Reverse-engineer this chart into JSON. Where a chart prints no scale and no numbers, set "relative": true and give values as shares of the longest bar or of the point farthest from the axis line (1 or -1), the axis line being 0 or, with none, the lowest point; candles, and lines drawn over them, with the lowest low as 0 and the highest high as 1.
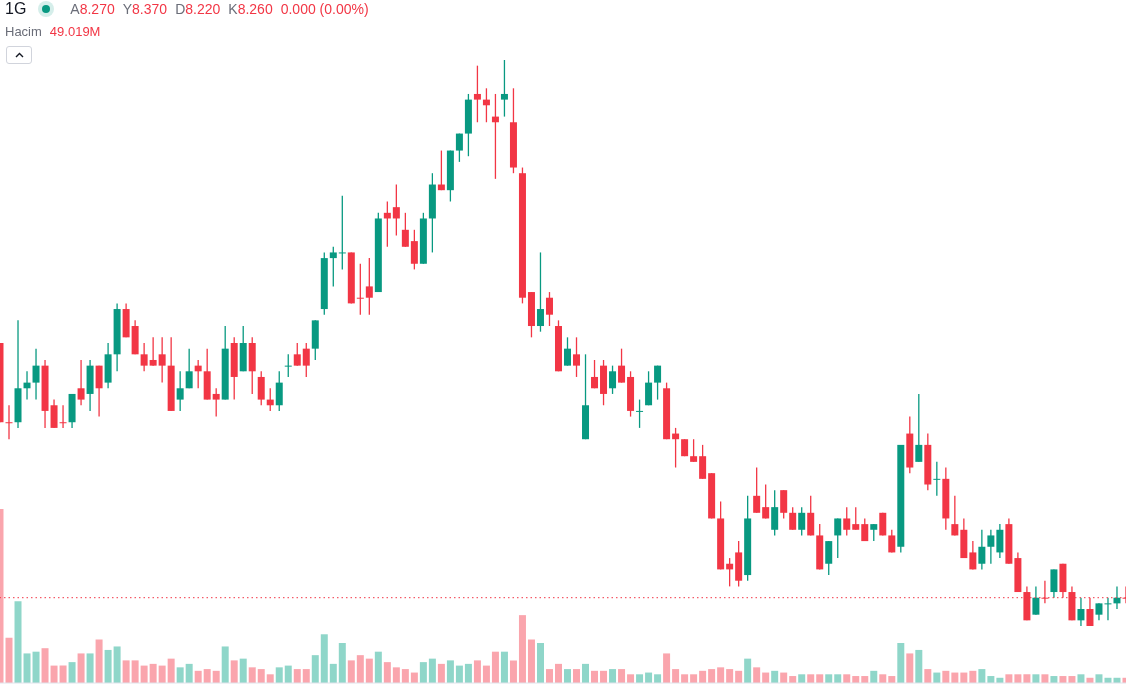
{
  "chart_data": [
    {
      "type": "candlestick",
      "title": "1G",
      "relative": true,
      "annotations": [
        "A8.270",
        "Y8.370",
        "D8.220",
        "K8.260",
        "0.000 (0.00%)"
      ],
      "categories": [
        null,
        null,
        null,
        null,
        null,
        null,
        null,
        null,
        null,
        null,
        null,
        null,
        null,
        null,
        null,
        null,
        null,
        null,
        null,
        null,
        null,
        null,
        null,
        null,
        null,
        null,
        null,
        null,
        null,
        null,
        null,
        null,
        null,
        null,
        null,
        null,
        null,
        null,
        null,
        null,
        null,
        null,
        null,
        null,
        null,
        null,
        null,
        null,
        null,
        null,
        null,
        null,
        null,
        null,
        null,
        null,
        null,
        null,
        null,
        null,
        null,
        null,
        null,
        null,
        null,
        null,
        null,
        null,
        null,
        null,
        null,
        null,
        null,
        null,
        null,
        null,
        null,
        null,
        null,
        null,
        null,
        null,
        null,
        null,
        null,
        null,
        null,
        null,
        null,
        null,
        null,
        null,
        null,
        null,
        null,
        null,
        null,
        null,
        null,
        null,
        null,
        null,
        null,
        null,
        null,
        null,
        null,
        null,
        null,
        null,
        null,
        null,
        null,
        null,
        null,
        null,
        null,
        null,
        null,
        null,
        null,
        null,
        null,
        null,
        null,
        null
      ],
      "ohlc": [
        [
          0.5,
          0.5,
          0.36,
          0.36
        ],
        [
          0.36,
          0.39,
          0.33,
          0.36
        ],
        [
          0.36,
          0.54,
          0.35,
          0.42
        ],
        [
          0.42,
          0.45,
          0.4,
          0.43
        ],
        [
          0.43,
          0.49,
          0.4,
          0.46
        ],
        [
          0.46,
          0.47,
          0.35,
          0.38
        ],
        [
          0.39,
          0.4,
          0.35,
          0.35
        ],
        [
          0.36,
          0.39,
          0.35,
          0.36
        ],
        [
          0.36,
          0.41,
          0.35,
          0.41
        ],
        [
          0.42,
          0.47,
          0.39,
          0.4
        ],
        [
          0.41,
          0.47,
          0.38,
          0.46
        ],
        [
          0.46,
          0.46,
          0.37,
          0.42
        ],
        [
          0.43,
          0.5,
          0.42,
          0.48
        ],
        [
          0.48,
          0.57,
          0.45,
          0.56
        ],
        [
          0.56,
          0.57,
          0.51,
          0.51
        ],
        [
          0.53,
          0.54,
          0.48,
          0.48
        ],
        [
          0.48,
          0.5,
          0.45,
          0.46
        ],
        [
          0.47,
          0.51,
          0.46,
          0.46
        ],
        [
          0.48,
          0.51,
          0.43,
          0.46
        ],
        [
          0.46,
          0.51,
          0.38,
          0.38
        ],
        [
          0.4,
          0.45,
          0.38,
          0.42
        ],
        [
          0.42,
          0.49,
          0.42,
          0.45
        ],
        [
          0.46,
          0.47,
          0.42,
          0.45
        ],
        [
          0.45,
          0.49,
          0.4,
          0.4
        ],
        [
          0.41,
          0.42,
          0.37,
          0.4
        ],
        [
          0.4,
          0.53,
          0.4,
          0.49
        ],
        [
          0.5,
          0.51,
          0.4,
          0.44
        ],
        [
          0.45,
          0.53,
          0.45,
          0.5
        ],
        [
          0.5,
          0.51,
          0.41,
          0.45
        ],
        [
          0.44,
          0.45,
          0.39,
          0.4
        ],
        [
          0.4,
          0.42,
          0.38,
          0.39
        ],
        [
          0.39,
          0.45,
          0.38,
          0.43
        ],
        [
          0.46,
          0.48,
          0.44,
          0.46
        ],
        [
          0.48,
          0.5,
          0.46,
          0.46
        ],
        [
          0.49,
          0.5,
          0.44,
          0.46
        ],
        [
          0.49,
          0.54,
          0.47,
          0.54
        ],
        [
          0.56,
          0.66,
          0.55,
          0.65
        ],
        [
          0.65,
          0.67,
          0.6,
          0.66
        ],
        [
          0.66,
          0.76,
          0.63,
          0.66
        ],
        [
          0.66,
          0.66,
          0.57,
          0.57
        ],
        [
          0.58,
          0.64,
          0.55,
          0.58
        ],
        [
          0.6,
          0.65,
          0.55,
          0.58
        ],
        [
          0.59,
          0.73,
          0.59,
          0.72
        ],
        [
          0.73,
          0.75,
          0.67,
          0.72
        ],
        [
          0.74,
          0.78,
          0.69,
          0.72
        ],
        [
          0.7,
          0.73,
          0.67,
          0.67
        ],
        [
          0.68,
          0.7,
          0.63,
          0.64
        ],
        [
          0.64,
          0.73,
          0.64,
          0.72
        ],
        [
          0.72,
          0.8,
          0.66,
          0.78
        ],
        [
          0.78,
          0.84,
          0.77,
          0.77
        ],
        [
          0.77,
          0.84,
          0.75,
          0.84
        ],
        [
          0.84,
          0.87,
          0.82,
          0.87
        ],
        [
          0.87,
          0.94,
          0.83,
          0.93
        ],
        [
          0.94,
          0.99,
          0.89,
          0.93
        ],
        [
          0.93,
          0.95,
          0.89,
          0.92
        ],
        [
          0.9,
          0.94,
          0.79,
          0.89
        ],
        [
          0.93,
          1.0,
          0.9,
          0.94
        ],
        [
          0.89,
          0.95,
          0.8,
          0.81
        ],
        [
          0.8,
          0.81,
          0.57,
          0.58
        ],
        [
          0.59,
          0.59,
          0.51,
          0.53
        ],
        [
          0.53,
          0.66,
          0.52,
          0.56
        ],
        [
          0.58,
          0.59,
          0.53,
          0.55
        ],
        [
          0.53,
          0.54,
          0.45,
          0.45
        ],
        [
          0.46,
          0.51,
          0.46,
          0.49
        ],
        [
          0.48,
          0.51,
          0.44,
          0.46
        ],
        [
          0.33,
          0.48,
          0.33,
          0.39
        ],
        [
          0.44,
          0.47,
          0.42,
          0.42
        ],
        [
          0.46,
          0.47,
          0.39,
          0.41
        ],
        [
          0.42,
          0.46,
          0.41,
          0.45
        ],
        [
          0.46,
          0.49,
          0.43,
          0.43
        ],
        [
          0.44,
          0.45,
          0.37,
          0.38
        ],
        [
          0.38,
          0.4,
          0.35,
          0.38
        ],
        [
          0.39,
          0.45,
          0.39,
          0.43
        ],
        [
          0.43,
          0.46,
          0.4,
          0.46
        ],
        [
          0.42,
          0.43,
          0.33,
          0.33
        ],
        [
          0.34,
          0.35,
          0.28,
          0.33
        ],
        [
          0.33,
          0.33,
          0.3,
          0.3
        ],
        [
          0.3,
          0.33,
          0.29,
          0.29
        ],
        [
          0.3,
          0.32,
          0.26,
          0.26
        ],
        [
          0.27,
          0.27,
          0.19,
          0.19
        ],
        [
          0.19,
          0.22,
          0.1,
          0.1
        ],
        [
          0.11,
          0.12,
          0.07,
          0.1
        ],
        [
          0.13,
          0.15,
          0.07,
          0.08
        ],
        [
          0.09,
          0.23,
          0.08,
          0.19
        ],
        [
          0.23,
          0.28,
          0.2,
          0.2
        ],
        [
          0.21,
          0.25,
          0.19,
          0.19
        ],
        [
          0.17,
          0.24,
          0.16,
          0.21
        ],
        [
          0.24,
          0.24,
          0.19,
          0.2
        ],
        [
          0.2,
          0.21,
          0.17,
          0.17
        ],
        [
          0.17,
          0.21,
          0.16,
          0.2
        ],
        [
          0.2,
          0.23,
          0.16,
          0.16
        ],
        [
          0.16,
          0.18,
          0.1,
          0.1
        ],
        [
          0.11,
          0.15,
          0.09,
          0.15
        ],
        [
          0.16,
          0.19,
          0.12,
          0.19
        ],
        [
          0.19,
          0.21,
          0.16,
          0.17
        ],
        [
          0.18,
          0.21,
          0.17,
          0.17
        ],
        [
          0.18,
          0.19,
          0.15,
          0.15
        ],
        [
          0.17,
          0.18,
          0.15,
          0.18
        ],
        [
          0.2,
          0.2,
          0.16,
          0.16
        ],
        [
          0.16,
          0.17,
          0.13,
          0.13
        ],
        [
          0.14,
          0.32,
          0.13,
          0.32
        ],
        [
          0.34,
          0.37,
          0.27,
          0.28
        ],
        [
          0.29,
          0.41,
          0.29,
          0.32
        ],
        [
          0.32,
          0.34,
          0.24,
          0.25
        ],
        [
          0.26,
          0.29,
          0.23,
          0.26
        ],
        [
          0.26,
          0.28,
          0.17,
          0.19
        ],
        [
          0.18,
          0.23,
          0.16,
          0.16
        ],
        [
          0.17,
          0.19,
          0.12,
          0.12
        ],
        [
          0.13,
          0.15,
          0.1,
          0.1
        ],
        [
          0.11,
          0.17,
          0.1,
          0.14
        ],
        [
          0.14,
          0.17,
          0.11,
          0.16
        ],
        [
          0.13,
          0.18,
          0.12,
          0.17
        ],
        [
          0.18,
          0.19,
          0.11,
          0.11
        ],
        [
          0.12,
          0.13,
          0.06,
          0.06
        ],
        [
          0.06,
          0.07,
          0.01,
          0.01
        ],
        [
          0.02,
          0.07,
          0.02,
          0.05
        ],
        [
          0.05,
          0.08,
          0.04,
          0.05
        ],
        [
          0.06,
          0.1,
          0.05,
          0.1
        ],
        [
          0.11,
          0.11,
          0.05,
          0.06
        ],
        [
          0.06,
          0.07,
          0.01,
          0.01
        ],
        [
          0.01,
          0.05,
          0.0,
          0.03
        ],
        [
          0.03,
          0.05,
          0.0,
          0.0
        ],
        [
          0.02,
          0.04,
          0.01,
          0.04
        ],
        [
          0.04,
          0.05,
          0.01,
          0.04
        ],
        [
          0.04,
          0.07,
          0.03,
          0.05
        ],
        [
          0.05,
          0.07,
          0.04,
          0.05
        ]
      ],
      "colors": [
        "#f23645",
        "#f23645",
        "#089981",
        "#089981",
        "#089981",
        "#f23645",
        "#f23645",
        "#f23645",
        "#089981",
        "#f23645",
        "#089981",
        "#f23645",
        "#089981",
        "#089981",
        "#f23645",
        "#f23645",
        "#f23645",
        "#f23645",
        "#f23645",
        "#f23645",
        "#089981",
        "#089981",
        "#f23645",
        "#f23645",
        "#f23645",
        "#089981",
        "#f23645",
        "#089981",
        "#f23645",
        "#f23645",
        "#f23645",
        "#089981",
        "#089981",
        "#f23645",
        "#f23645",
        "#089981",
        "#089981",
        "#089981",
        "#089981",
        "#f23645",
        "#f23645",
        "#f23645",
        "#089981",
        "#f23645",
        "#f23645",
        "#f23645",
        "#f23645",
        "#089981",
        "#089981",
        "#f23645",
        "#089981",
        "#089981",
        "#089981",
        "#f23645",
        "#f23645",
        "#f23645",
        "#089981",
        "#f23645",
        "#f23645",
        "#f23645",
        "#089981",
        "#f23645",
        "#f23645",
        "#089981",
        "#f23645",
        "#089981",
        "#f23645",
        "#f23645",
        "#089981",
        "#f23645",
        "#f23645",
        "#089981",
        "#089981",
        "#089981",
        "#f23645",
        "#f23645",
        "#f23645",
        "#f23645",
        "#f23645",
        "#f23645",
        "#f23645",
        "#f23645",
        "#f23645",
        "#089981",
        "#f23645",
        "#f23645",
        "#089981",
        "#f23645",
        "#f23645",
        "#089981",
        "#f23645",
        "#f23645",
        "#089981",
        "#089981",
        "#f23645",
        "#f23645",
        "#f23645",
        "#089981",
        "#f23645",
        "#f23645",
        "#089981",
        "#f23645",
        "#089981",
        "#f23645",
        "#089981",
        "#f23645",
        "#f23645",
        "#f23645",
        "#f23645",
        "#089981",
        "#089981",
        "#089981",
        "#f23645",
        "#f23645",
        "#f23645",
        "#089981",
        "#f23645",
        "#089981",
        "#f23645",
        "#f23645",
        "#089981",
        "#f23645",
        "#089981",
        "#089981",
        "#089981",
        "#f23645"
      ],
      "ref_lines": [
        {
          "axis": "y",
          "value": 0.05,
          "color": "#f23645",
          "line_style": "dotted"
        }
      ]
    },
    {
      "type": "bar",
      "title": "Hacim",
      "relative": true,
      "annotations": [
        "49.019M"
      ],
      "categories": [
        null,
        null,
        null,
        null,
        null,
        null,
        null,
        null,
        null,
        null,
        null,
        null,
        null,
        null,
        null,
        null,
        null,
        null,
        null,
        null,
        null,
        null,
        null,
        null,
        null,
        null,
        null,
        null,
        null,
        null,
        null,
        null,
        null,
        null,
        null,
        null,
        null,
        null,
        null,
        null,
        null,
        null,
        null,
        null,
        null,
        null,
        null,
        null,
        null,
        null,
        null,
        null,
        null,
        null,
        null,
        null,
        null,
        null,
        null,
        null,
        null,
        null,
        null,
        null,
        null,
        null,
        null,
        null,
        null,
        null,
        null,
        null,
        null,
        null,
        null,
        null,
        null,
        null,
        null,
        null,
        null,
        null,
        null,
        null,
        null,
        null,
        null,
        null,
        null,
        null,
        null,
        null,
        null,
        null,
        null,
        null,
        null,
        null,
        null,
        null,
        null,
        null,
        null,
        null,
        null,
        null,
        null,
        null,
        null,
        null,
        null,
        null,
        null,
        null,
        null,
        null,
        null,
        null,
        null,
        null,
        null,
        null,
        null,
        null,
        null,
        null
      ],
      "values": [
        1.0,
        0.26,
        0.47,
        0.17,
        0.18,
        0.2,
        0.1,
        0.1,
        0.12,
        0.17,
        0.17,
        0.25,
        0.19,
        0.21,
        0.13,
        0.13,
        0.1,
        0.11,
        0.1,
        0.14,
        0.09,
        0.11,
        0.07,
        0.08,
        0.07,
        0.21,
        0.13,
        0.14,
        0.09,
        0.08,
        0.05,
        0.09,
        0.1,
        0.08,
        0.08,
        0.16,
        0.28,
        0.11,
        0.23,
        0.13,
        0.16,
        0.14,
        0.18,
        0.12,
        0.09,
        0.08,
        0.06,
        0.12,
        0.14,
        0.11,
        0.13,
        0.1,
        0.11,
        0.13,
        0.1,
        0.18,
        0.18,
        0.13,
        0.39,
        0.25,
        0.23,
        0.08,
        0.11,
        0.08,
        0.08,
        0.11,
        0.07,
        0.07,
        0.08,
        0.08,
        0.05,
        0.05,
        0.06,
        0.05,
        0.17,
        0.08,
        0.05,
        0.05,
        0.07,
        0.08,
        0.09,
        0.08,
        0.07,
        0.14,
        0.09,
        0.06,
        0.07,
        0.06,
        0.04,
        0.05,
        0.05,
        0.05,
        0.05,
        0.05,
        0.05,
        0.04,
        0.04,
        0.07,
        0.05,
        0.04,
        0.23,
        0.17,
        0.19,
        0.08,
        0.06,
        0.07,
        0.06,
        0.06,
        0.07,
        0.08,
        0.04,
        0.03,
        0.05,
        0.05,
        0.05,
        0.05,
        0.05,
        0.04,
        0.04,
        0.04,
        0.05,
        0.03,
        0.05,
        0.03,
        0.03,
        0.03
      ],
      "colors": [
        "#faa5ad",
        "#faa5ad",
        "#8fd6c9",
        "#8fd6c9",
        "#8fd6c9",
        "#faa5ad",
        "#faa5ad",
        "#faa5ad",
        "#8fd6c9",
        "#faa5ad",
        "#8fd6c9",
        "#faa5ad",
        "#8fd6c9",
        "#8fd6c9",
        "#faa5ad",
        "#faa5ad",
        "#faa5ad",
        "#faa5ad",
        "#faa5ad",
        "#faa5ad",
        "#8fd6c9",
        "#8fd6c9",
        "#faa5ad",
        "#faa5ad",
        "#faa5ad",
        "#8fd6c9",
        "#faa5ad",
        "#8fd6c9",
        "#faa5ad",
        "#faa5ad",
        "#faa5ad",
        "#8fd6c9",
        "#8fd6c9",
        "#faa5ad",
        "#faa5ad",
        "#8fd6c9",
        "#8fd6c9",
        "#8fd6c9",
        "#8fd6c9",
        "#faa5ad",
        "#faa5ad",
        "#faa5ad",
        "#8fd6c9",
        "#faa5ad",
        "#faa5ad",
        "#faa5ad",
        "#faa5ad",
        "#8fd6c9",
        "#8fd6c9",
        "#faa5ad",
        "#8fd6c9",
        "#8fd6c9",
        "#8fd6c9",
        "#faa5ad",
        "#faa5ad",
        "#faa5ad",
        "#8fd6c9",
        "#faa5ad",
        "#faa5ad",
        "#faa5ad",
        "#8fd6c9",
        "#faa5ad",
        "#faa5ad",
        "#8fd6c9",
        "#faa5ad",
        "#8fd6c9",
        "#faa5ad",
        "#faa5ad",
        "#8fd6c9",
        "#faa5ad",
        "#faa5ad",
        "#8fd6c9",
        "#8fd6c9",
        "#8fd6c9",
        "#faa5ad",
        "#faa5ad",
        "#faa5ad",
        "#faa5ad",
        "#faa5ad",
        "#faa5ad",
        "#faa5ad",
        "#faa5ad",
        "#faa5ad",
        "#8fd6c9",
        "#faa5ad",
        "#faa5ad",
        "#8fd6c9",
        "#faa5ad",
        "#faa5ad",
        "#8fd6c9",
        "#faa5ad",
        "#faa5ad",
        "#8fd6c9",
        "#8fd6c9",
        "#faa5ad",
        "#faa5ad",
        "#faa5ad",
        "#8fd6c9",
        "#faa5ad",
        "#faa5ad",
        "#8fd6c9",
        "#faa5ad",
        "#8fd6c9",
        "#faa5ad",
        "#8fd6c9",
        "#faa5ad",
        "#faa5ad",
        "#faa5ad",
        "#faa5ad",
        "#8fd6c9",
        "#8fd6c9",
        "#8fd6c9",
        "#faa5ad",
        "#faa5ad",
        "#faa5ad",
        "#8fd6c9",
        "#faa5ad",
        "#8fd6c9",
        "#faa5ad",
        "#faa5ad",
        "#8fd6c9",
        "#faa5ad",
        "#8fd6c9",
        "#8fd6c9",
        "#8fd6c9",
        "#faa5ad"
      ]
    }
  ]
}
